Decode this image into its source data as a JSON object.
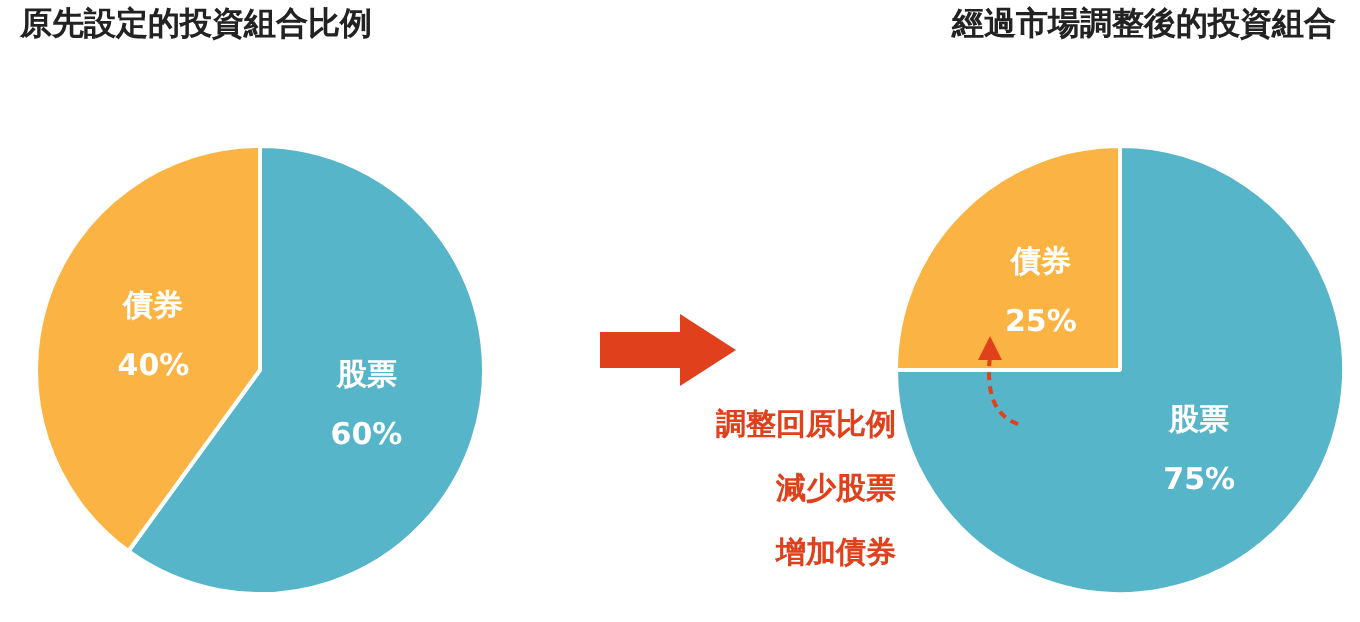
{
  "chart_data": [
    {
      "type": "pie",
      "title": "原先設定的投資組合比例",
      "categories": [
        "股票",
        "債券"
      ],
      "values": [
        60,
        40
      ],
      "colors": [
        "#56b5c8",
        "#fbb443"
      ],
      "value_labels": [
        "60%",
        "40%"
      ],
      "legend": false
    },
    {
      "type": "pie",
      "title": "經過市場調整後的投資組合",
      "categories": [
        "股票",
        "債券"
      ],
      "values": [
        75,
        25
      ],
      "colors": [
        "#56b5c8",
        "#fbb443"
      ],
      "value_labels": [
        "75%",
        "25%"
      ],
      "legend": false,
      "annotations": [
        "調整回原比例",
        "減少股票",
        "增加債券"
      ]
    }
  ]
}
